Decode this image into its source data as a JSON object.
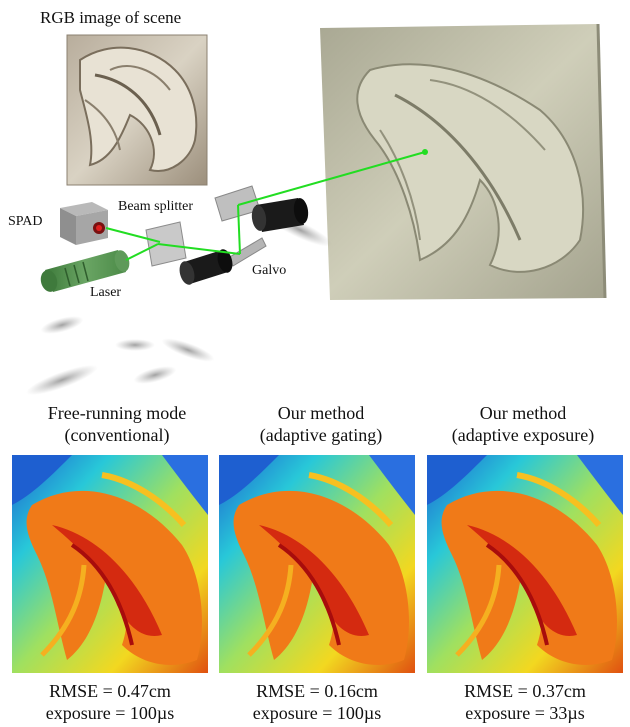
{
  "top": {
    "rgb_title": "RGB image of scene",
    "labels": {
      "spad": "SPAD",
      "beam_splitter": "Beam splitter",
      "laser": "Laser",
      "galvo": "Galvo"
    }
  },
  "panels": [
    {
      "title_line1": "Free-running mode",
      "title_line2": "(conventional)",
      "rmse": "RMSE = 0.47cm",
      "exposure": "exposure = 100µs"
    },
    {
      "title_line1": "Our method",
      "title_line2": "(adaptive gating)",
      "rmse": "RMSE = 0.16cm",
      "exposure": "exposure = 100µs"
    },
    {
      "title_line1": "Our method",
      "title_line2": "(adaptive exposure)",
      "rmse": "RMSE = 0.37cm",
      "exposure": "exposure = 33µs"
    }
  ],
  "colors": {
    "laser_beam": "#22dd22",
    "scene_render": "#c9c8b4",
    "depth_high": "#b01010",
    "depth_low": "#1e5fd0"
  }
}
